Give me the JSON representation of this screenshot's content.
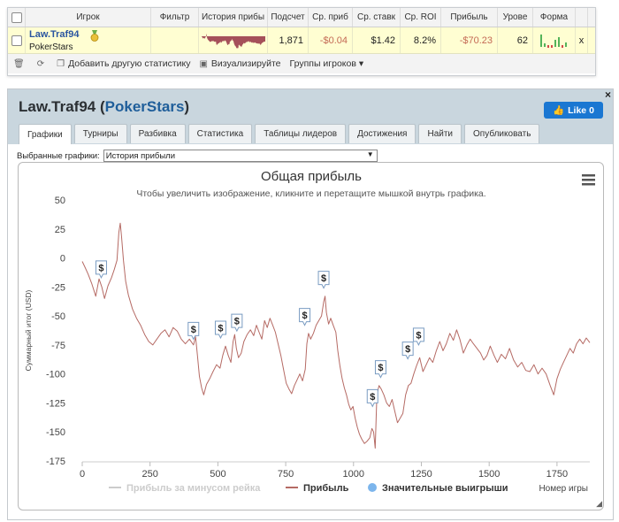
{
  "grid": {
    "headers": [
      "Игрок",
      "Фильтр",
      "История прибы",
      "Подсчет",
      "Ср. приб",
      "Ср. ставк",
      "Ср. ROI",
      "Прибыль",
      "Урове",
      "Форма"
    ],
    "row": {
      "player": "Law.Traf94",
      "site": "PokerStars",
      "count": "1,871",
      "avg_profit": "-$0.04",
      "avg_stake": "$1.42",
      "avg_roi": "8.2%",
      "profit": "-$70.23",
      "level": "62",
      "remove": "x"
    },
    "colors": {
      "negative": "#c46a55",
      "row_bg": "#fffed2",
      "spark": "#a5505a",
      "form_green": "#54b35a",
      "form_red": "#d24a4a"
    }
  },
  "toolbar": {
    "add_stats": "Добавить другую статистику",
    "visualize": "Визуализируйте",
    "groups": "Группы игроков ▾"
  },
  "panel": {
    "player": "Law.Traf94",
    "site": "PokerStars",
    "like": "Like 0",
    "close": "×",
    "tabs": [
      "Графики",
      "Турниры",
      "Разбивка",
      "Статистика",
      "Таблицы лидеров",
      "Достижения",
      "Найти",
      "Опубликовать"
    ],
    "selected_label": "Выбранные графики:",
    "selected_value": "История прибыли"
  },
  "chart_data": {
    "type": "line",
    "title": "Общая прибыль",
    "subtitle": "Чтобы увеличить изображение, кликните и перетащите мышкой внутрь графика.",
    "ylabel": "Суммарный итог (USD)",
    "xlabel": "Номер игры",
    "xlim": [
      0,
      1871
    ],
    "ylim": [
      -175,
      50
    ],
    "x_ticks": [
      0,
      250,
      500,
      750,
      1000,
      1250,
      1500,
      1750
    ],
    "y_ticks": [
      50,
      25,
      0,
      -25,
      -50,
      -75,
      -100,
      -125,
      -150,
      -175
    ],
    "series": [
      {
        "name": "Прибыль",
        "color": "#b56a64",
        "points": [
          [
            0,
            -3
          ],
          [
            10,
            -8
          ],
          [
            22,
            -14
          ],
          [
            35,
            -22
          ],
          [
            50,
            -33
          ],
          [
            62,
            -18
          ],
          [
            72,
            -25
          ],
          [
            82,
            -35
          ],
          [
            95,
            -24
          ],
          [
            108,
            -17
          ],
          [
            118,
            -10
          ],
          [
            128,
            -2
          ],
          [
            135,
            22
          ],
          [
            140,
            30
          ],
          [
            145,
            18
          ],
          [
            152,
            -2
          ],
          [
            160,
            -20
          ],
          [
            170,
            -32
          ],
          [
            185,
            -44
          ],
          [
            200,
            -52
          ],
          [
            215,
            -58
          ],
          [
            230,
            -66
          ],
          [
            245,
            -72
          ],
          [
            260,
            -75
          ],
          [
            275,
            -70
          ],
          [
            290,
            -65
          ],
          [
            305,
            -62
          ],
          [
            320,
            -68
          ],
          [
            335,
            -60
          ],
          [
            350,
            -63
          ],
          [
            365,
            -70
          ],
          [
            380,
            -74
          ],
          [
            395,
            -70
          ],
          [
            410,
            -75
          ],
          [
            418,
            -68
          ],
          [
            425,
            -85
          ],
          [
            432,
            -102
          ],
          [
            440,
            -112
          ],
          [
            448,
            -118
          ],
          [
            458,
            -109
          ],
          [
            470,
            -104
          ],
          [
            482,
            -98
          ],
          [
            495,
            -92
          ],
          [
            508,
            -95
          ],
          [
            518,
            -84
          ],
          [
            528,
            -76
          ],
          [
            538,
            -84
          ],
          [
            548,
            -90
          ],
          [
            556,
            -72
          ],
          [
            562,
            -66
          ],
          [
            568,
            -78
          ],
          [
            576,
            -86
          ],
          [
            586,
            -82
          ],
          [
            596,
            -72
          ],
          [
            608,
            -66
          ],
          [
            620,
            -62
          ],
          [
            632,
            -67
          ],
          [
            642,
            -58
          ],
          [
            652,
            -64
          ],
          [
            662,
            -70
          ],
          [
            672,
            -54
          ],
          [
            682,
            -60
          ],
          [
            692,
            -52
          ],
          [
            702,
            -58
          ],
          [
            712,
            -64
          ],
          [
            722,
            -74
          ],
          [
            732,
            -84
          ],
          [
            742,
            -96
          ],
          [
            752,
            -108
          ],
          [
            762,
            -113
          ],
          [
            772,
            -117
          ],
          [
            782,
            -110
          ],
          [
            792,
            -105
          ],
          [
            802,
            -100
          ],
          [
            812,
            -106
          ],
          [
            822,
            -96
          ],
          [
            828,
            -74
          ],
          [
            834,
            -65
          ],
          [
            842,
            -70
          ],
          [
            852,
            -65
          ],
          [
            862,
            -58
          ],
          [
            872,
            -54
          ],
          [
            882,
            -50
          ],
          [
            890,
            -38
          ],
          [
            895,
            -33
          ],
          [
            900,
            -47
          ],
          [
            908,
            -57
          ],
          [
            916,
            -52
          ],
          [
            925,
            -58
          ],
          [
            935,
            -64
          ],
          [
            942,
            -80
          ],
          [
            950,
            -93
          ],
          [
            958,
            -104
          ],
          [
            966,
            -112
          ],
          [
            974,
            -118
          ],
          [
            982,
            -126
          ],
          [
            990,
            -131
          ],
          [
            998,
            -128
          ],
          [
            1006,
            -138
          ],
          [
            1014,
            -146
          ],
          [
            1022,
            -152
          ],
          [
            1030,
            -156
          ],
          [
            1040,
            -160
          ],
          [
            1050,
            -158
          ],
          [
            1060,
            -155
          ],
          [
            1068,
            -147
          ],
          [
            1074,
            -150
          ],
          [
            1080,
            -164
          ],
          [
            1086,
            -118
          ],
          [
            1094,
            -110
          ],
          [
            1102,
            -113
          ],
          [
            1112,
            -118
          ],
          [
            1122,
            -125
          ],
          [
            1132,
            -128
          ],
          [
            1142,
            -122
          ],
          [
            1152,
            -132
          ],
          [
            1162,
            -142
          ],
          [
            1172,
            -138
          ],
          [
            1182,
            -134
          ],
          [
            1192,
            -118
          ],
          [
            1202,
            -110
          ],
          [
            1212,
            -108
          ],
          [
            1222,
            -100
          ],
          [
            1232,
            -93
          ],
          [
            1244,
            -86
          ],
          [
            1256,
            -98
          ],
          [
            1268,
            -92
          ],
          [
            1280,
            -86
          ],
          [
            1292,
            -90
          ],
          [
            1305,
            -80
          ],
          [
            1318,
            -72
          ],
          [
            1330,
            -80
          ],
          [
            1342,
            -74
          ],
          [
            1355,
            -65
          ],
          [
            1368,
            -71
          ],
          [
            1380,
            -62
          ],
          [
            1392,
            -70
          ],
          [
            1405,
            -82
          ],
          [
            1418,
            -75
          ],
          [
            1430,
            -70
          ],
          [
            1442,
            -74
          ],
          [
            1455,
            -78
          ],
          [
            1468,
            -82
          ],
          [
            1480,
            -88
          ],
          [
            1492,
            -84
          ],
          [
            1504,
            -76
          ],
          [
            1518,
            -84
          ],
          [
            1530,
            -90
          ],
          [
            1545,
            -83
          ],
          [
            1560,
            -87
          ],
          [
            1575,
            -78
          ],
          [
            1590,
            -88
          ],
          [
            1605,
            -94
          ],
          [
            1620,
            -90
          ],
          [
            1635,
            -97
          ],
          [
            1650,
            -98
          ],
          [
            1665,
            -92
          ],
          [
            1680,
            -100
          ],
          [
            1695,
            -95
          ],
          [
            1710,
            -100
          ],
          [
            1725,
            -110
          ],
          [
            1738,
            -118
          ],
          [
            1750,
            -104
          ],
          [
            1762,
            -96
          ],
          [
            1774,
            -90
          ],
          [
            1786,
            -84
          ],
          [
            1798,
            -78
          ],
          [
            1810,
            -82
          ],
          [
            1822,
            -74
          ],
          [
            1834,
            -70
          ],
          [
            1846,
            -74
          ],
          [
            1858,
            -69
          ],
          [
            1871,
            -73
          ]
        ]
      }
    ],
    "big_wins": [
      [
        70,
        -17
      ],
      [
        410,
        -70
      ],
      [
        510,
        -69
      ],
      [
        570,
        -63
      ],
      [
        820,
        -58
      ],
      [
        890,
        -26
      ],
      [
        1070,
        -128
      ],
      [
        1100,
        -103
      ],
      [
        1200,
        -87
      ],
      [
        1240,
        -75
      ]
    ],
    "legend": [
      "Прибыль за минусом рейка",
      "Прибыль",
      "Значительные выигрыши"
    ],
    "legend_position": "bottom",
    "big_win_marker": "$",
    "grid": false,
    "menu_icon": "hamburger-icon"
  }
}
